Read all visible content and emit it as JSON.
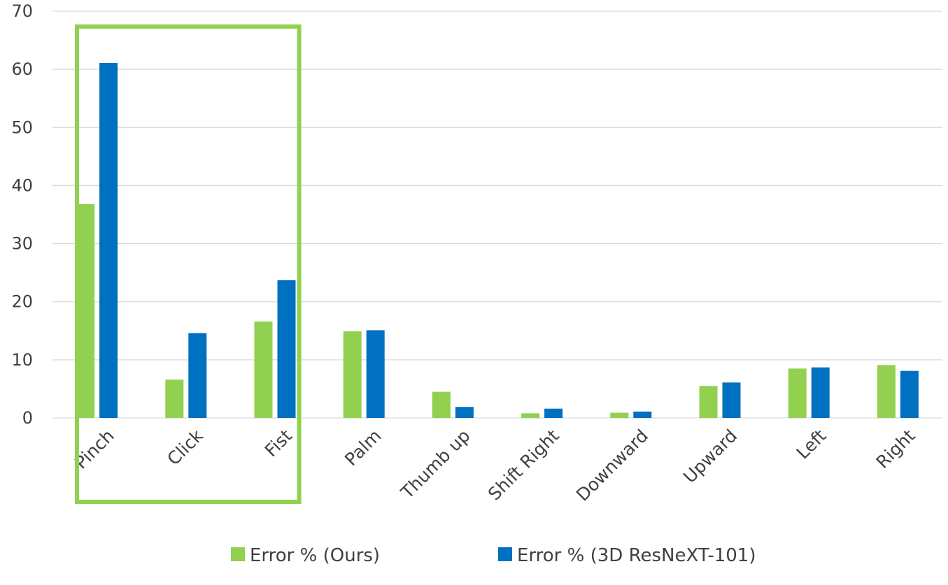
{
  "chart_data": {
    "type": "bar",
    "title": "",
    "xlabel": "",
    "ylabel": "",
    "ylim": [
      0,
      70
    ],
    "yticks": [
      0,
      10,
      20,
      30,
      40,
      50,
      60,
      70
    ],
    "grid": true,
    "legend_position": "bottom",
    "categories": [
      "Pinch",
      "Click",
      "Fist",
      "Palm",
      "Thumb up",
      "Shift Right",
      "Downward",
      "Upward",
      "Left",
      "Right"
    ],
    "series": [
      {
        "name": "Error % (Ours)",
        "color": "#92d050",
        "values": [
          36.8,
          6.6,
          16.6,
          14.9,
          4.5,
          0.8,
          0.9,
          5.5,
          8.5,
          9.1
        ]
      },
      {
        "name": "Error % (3D ResNeXT-101)",
        "color": "#0070c0",
        "values": [
          61.1,
          14.6,
          23.7,
          15.1,
          1.9,
          1.6,
          1.1,
          6.1,
          8.7,
          8.1
        ]
      }
    ],
    "highlight": {
      "categories": [
        "Pinch",
        "Click",
        "Fist"
      ],
      "color": "#92d050"
    }
  }
}
